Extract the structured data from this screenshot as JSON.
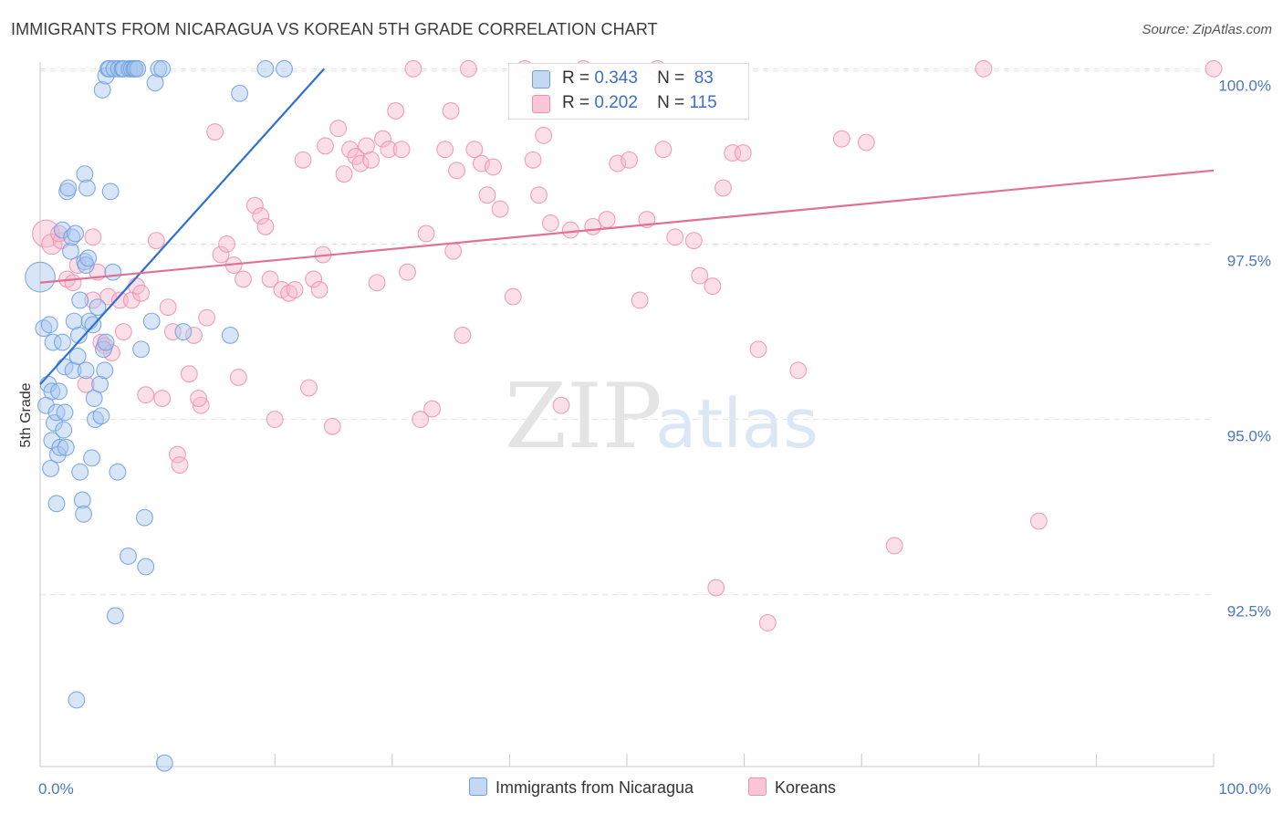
{
  "header": {
    "title": "IMMIGRANTS FROM NICARAGUA VS KOREAN 5TH GRADE CORRELATION CHART",
    "source": "Source: ZipAtlas.com"
  },
  "legend": {
    "r_label": "R =",
    "n_label": "N =",
    "blue": {
      "r": "0.343",
      "n": "83"
    },
    "pink": {
      "r": "0.202",
      "n": "115"
    }
  },
  "bottom_legend": {
    "blue_label": "Immigrants from Nicaragua",
    "pink_label": "Koreans"
  },
  "watermark": {
    "zip": "ZIP",
    "atlas": "atlas"
  },
  "colors": {
    "blue_fill": "#a9c6ee",
    "blue_stroke": "#6b9de0",
    "blue_line": "#2e6fd4",
    "pink_fill": "#f6b8cb",
    "pink_stroke": "#ec8fb0",
    "pink_line": "#e07098",
    "grid": "#e3e3e3",
    "axis_text": "#4a78c2"
  },
  "chart_data": {
    "type": "scatter",
    "title": "IMMIGRANTS FROM NICARAGUA VS KOREAN 5TH GRADE CORRELATION CHART",
    "xlabel": "",
    "ylabel": "5th Grade",
    "xlim": [
      0,
      100
    ],
    "ylim": [
      90.05,
      100.2
    ],
    "x_tick_labels": [
      "0.0%",
      "100.0%"
    ],
    "y_ticks": [
      {
        "value": 92.5,
        "label": "92.5%"
      },
      {
        "value": 95.0,
        "label": "95.0%"
      },
      {
        "value": 97.5,
        "label": "97.5%"
      },
      {
        "value": 100.0,
        "label": "100.0%"
      }
    ],
    "series": [
      {
        "name": "Immigrants from Nicaragua",
        "color": "blue",
        "r": 0.343,
        "n": 83,
        "trendline": {
          "x": [
            0,
            24.2
          ],
          "y": [
            95.5,
            100.0
          ]
        },
        "points": [
          [
            0,
            97.03,
            22
          ],
          [
            0.3,
            96.3,
            12
          ],
          [
            0.5,
            95.2,
            12
          ],
          [
            0.7,
            95.5,
            12
          ],
          [
            0.8,
            96.35,
            12
          ],
          [
            0.9,
            94.3,
            12
          ],
          [
            1.0,
            95.4,
            12
          ],
          [
            1.0,
            94.7,
            12
          ],
          [
            1.1,
            96.1,
            12
          ],
          [
            1.2,
            94.95,
            12
          ],
          [
            1.4,
            93.8,
            12
          ],
          [
            1.4,
            95.1,
            12
          ],
          [
            1.5,
            94.5,
            12
          ],
          [
            1.6,
            95.4,
            12
          ],
          [
            1.7,
            94.6,
            12
          ],
          [
            1.9,
            97.7,
            12
          ],
          [
            1.9,
            96.1,
            12
          ],
          [
            2.0,
            94.85,
            12
          ],
          [
            2.1,
            95.75,
            12
          ],
          [
            2.2,
            94.6,
            12
          ],
          [
            2.1,
            95.1,
            12
          ],
          [
            2.3,
            98.25,
            12
          ],
          [
            2.4,
            98.3,
            12
          ],
          [
            2.6,
            97.4,
            12
          ],
          [
            2.7,
            97.6,
            12
          ],
          [
            2.8,
            95.7,
            12
          ],
          [
            2.9,
            96.4,
            12
          ],
          [
            3.0,
            97.65,
            12
          ],
          [
            3.1,
            91.0,
            12
          ],
          [
            3.2,
            95.9,
            12
          ],
          [
            3.3,
            96.2,
            12
          ],
          [
            3.4,
            94.25,
            12
          ],
          [
            3.4,
            96.7,
            12
          ],
          [
            3.6,
            93.85,
            12
          ],
          [
            3.7,
            93.65,
            12
          ],
          [
            3.8,
            97.25,
            12
          ],
          [
            3.8,
            98.5,
            12
          ],
          [
            3.9,
            97.2,
            12
          ],
          [
            3.9,
            95.7,
            12
          ],
          [
            4.0,
            98.3,
            12
          ],
          [
            4.1,
            97.3,
            12
          ],
          [
            4.2,
            96.4,
            12
          ],
          [
            4.4,
            94.45,
            12
          ],
          [
            4.5,
            96.35,
            12
          ],
          [
            4.6,
            95.3,
            12
          ],
          [
            4.7,
            95.0,
            12
          ],
          [
            4.9,
            96.6,
            12
          ],
          [
            5.1,
            95.5,
            12
          ],
          [
            5.2,
            95.05,
            12
          ],
          [
            5.3,
            99.7,
            12
          ],
          [
            5.4,
            96.0,
            12
          ],
          [
            5.5,
            95.7,
            12
          ],
          [
            5.6,
            96.1,
            12
          ],
          [
            5.6,
            99.9,
            12
          ],
          [
            5.8,
            100.0,
            12
          ],
          [
            5.9,
            100.0,
            12
          ],
          [
            6.0,
            98.25,
            12
          ],
          [
            6.2,
            97.1,
            12
          ],
          [
            6.3,
            100.0,
            12
          ],
          [
            6.6,
            94.25,
            12
          ],
          [
            6.7,
            100.0,
            12
          ],
          [
            7.0,
            100.0,
            12
          ],
          [
            7.1,
            100.0,
            12
          ],
          [
            7.5,
            93.05,
            12
          ],
          [
            7.6,
            100.0,
            12
          ],
          [
            7.8,
            100.0,
            12
          ],
          [
            8.0,
            100.0,
            12
          ],
          [
            8.1,
            100.0,
            12
          ],
          [
            8.3,
            100.0,
            12
          ],
          [
            8.6,
            96.0,
            12
          ],
          [
            8.9,
            93.6,
            12
          ],
          [
            9.0,
            92.9,
            12
          ],
          [
            9.5,
            96.4,
            12
          ],
          [
            9.8,
            99.8,
            12
          ],
          [
            10.1,
            100.0,
            12
          ],
          [
            10.4,
            100.0,
            12
          ],
          [
            10.6,
            90.1,
            12
          ],
          [
            12.2,
            96.25,
            12
          ],
          [
            16.2,
            96.2,
            12
          ],
          [
            17.0,
            99.65,
            12
          ],
          [
            19.2,
            100.0,
            12
          ],
          [
            20.8,
            100.0,
            12
          ],
          [
            6.4,
            92.2,
            12
          ]
        ]
      },
      {
        "name": "Koreans",
        "color": "pink",
        "r": 0.202,
        "n": 115,
        "trendline": {
          "x": [
            0,
            100
          ],
          "y": [
            96.95,
            98.55
          ]
        },
        "points": [
          [
            0.5,
            97.65,
            20
          ],
          [
            1.0,
            97.5,
            15
          ],
          [
            1.8,
            97.55,
            12
          ],
          [
            2.3,
            97.0,
            12
          ],
          [
            2.8,
            96.95,
            12
          ],
          [
            3.2,
            97.2,
            12
          ],
          [
            3.9,
            95.5,
            12
          ],
          [
            4.5,
            96.7,
            12
          ],
          [
            4.9,
            97.1,
            12
          ],
          [
            5.2,
            96.1,
            12
          ],
          [
            5.5,
            96.05,
            12
          ],
          [
            5.8,
            96.75,
            12
          ],
          [
            6.1,
            95.95,
            12
          ],
          [
            6.8,
            96.7,
            12
          ],
          [
            7.1,
            96.25,
            12
          ],
          [
            7.8,
            96.7,
            12
          ],
          [
            8.2,
            96.9,
            12
          ],
          [
            8.6,
            96.8,
            12
          ],
          [
            9.0,
            95.35,
            12
          ],
          [
            9.9,
            97.55,
            12
          ],
          [
            10.4,
            95.3,
            12
          ],
          [
            10.9,
            96.6,
            12
          ],
          [
            11.3,
            96.25,
            12
          ],
          [
            11.7,
            94.5,
            12
          ],
          [
            11.9,
            94.35,
            12
          ],
          [
            12.7,
            95.65,
            12
          ],
          [
            13.1,
            96.2,
            12
          ],
          [
            13.7,
            95.2,
            12
          ],
          [
            14.2,
            96.45,
            12
          ],
          [
            14.9,
            99.1,
            12
          ],
          [
            15.4,
            97.35,
            12
          ],
          [
            15.9,
            97.5,
            12
          ],
          [
            16.5,
            97.2,
            12
          ],
          [
            16.9,
            95.6,
            12
          ],
          [
            17.3,
            97.0,
            12
          ],
          [
            18.3,
            98.05,
            12
          ],
          [
            18.8,
            97.9,
            12
          ],
          [
            19.2,
            97.75,
            12
          ],
          [
            19.6,
            97.0,
            12
          ],
          [
            20.0,
            95.0,
            12
          ],
          [
            20.6,
            96.85,
            12
          ],
          [
            21.2,
            96.8,
            12
          ],
          [
            21.7,
            96.85,
            12
          ],
          [
            22.4,
            98.7,
            12
          ],
          [
            22.9,
            95.45,
            12
          ],
          [
            23.3,
            97.0,
            12
          ],
          [
            23.8,
            96.85,
            12
          ],
          [
            24.3,
            98.9,
            12
          ],
          [
            24.9,
            94.9,
            12
          ],
          [
            25.4,
            99.15,
            12
          ],
          [
            25.9,
            98.5,
            12
          ],
          [
            26.4,
            98.85,
            12
          ],
          [
            26.9,
            98.75,
            12
          ],
          [
            27.3,
            98.65,
            12
          ],
          [
            27.8,
            98.9,
            12
          ],
          [
            28.2,
            98.7,
            12
          ],
          [
            28.7,
            96.95,
            12
          ],
          [
            29.2,
            99.0,
            12
          ],
          [
            29.7,
            98.85,
            12
          ],
          [
            30.3,
            99.4,
            12
          ],
          [
            30.8,
            98.85,
            12
          ],
          [
            31.3,
            97.1,
            12
          ],
          [
            31.8,
            100.0,
            12
          ],
          [
            32.4,
            95.0,
            12
          ],
          [
            32.9,
            97.65,
            12
          ],
          [
            33.4,
            95.15,
            12
          ],
          [
            34.5,
            98.85,
            12
          ],
          [
            35.0,
            99.4,
            12
          ],
          [
            35.5,
            98.55,
            12
          ],
          [
            36.0,
            96.2,
            12
          ],
          [
            36.5,
            100.0,
            12
          ],
          [
            37.0,
            98.85,
            12
          ],
          [
            37.6,
            98.65,
            12
          ],
          [
            38.1,
            98.2,
            12
          ],
          [
            38.6,
            98.6,
            12
          ],
          [
            39.2,
            98.0,
            12
          ],
          [
            40.3,
            96.75,
            12
          ],
          [
            41.3,
            100.0,
            12
          ],
          [
            42.0,
            98.7,
            12
          ],
          [
            42.5,
            98.2,
            12
          ],
          [
            42.9,
            99.05,
            12
          ],
          [
            43.5,
            97.8,
            12
          ],
          [
            45.2,
            97.7,
            12
          ],
          [
            46.3,
            100.0,
            12
          ],
          [
            47.1,
            97.75,
            12
          ],
          [
            48.3,
            97.85,
            12
          ],
          [
            49.2,
            98.65,
            12
          ],
          [
            50.2,
            98.7,
            12
          ],
          [
            51.1,
            96.7,
            12
          ],
          [
            51.7,
            97.85,
            12
          ],
          [
            53.1,
            98.85,
            12
          ],
          [
            54.1,
            97.6,
            12
          ],
          [
            56.2,
            97.05,
            12
          ],
          [
            57.3,
            96.9,
            12
          ],
          [
            58.2,
            98.3,
            12
          ],
          [
            59.0,
            98.8,
            12
          ],
          [
            59.9,
            98.8,
            12
          ],
          [
            61.2,
            96.0,
            12
          ],
          [
            62.0,
            92.1,
            12
          ],
          [
            64.6,
            95.7,
            12
          ],
          [
            57.6,
            92.6,
            12
          ],
          [
            68.3,
            99.0,
            12
          ],
          [
            70.4,
            98.95,
            12
          ],
          [
            72.8,
            93.2,
            12
          ],
          [
            80.4,
            100.0,
            12
          ],
          [
            85.1,
            93.55,
            12
          ],
          [
            100.0,
            100.0,
            12
          ],
          [
            44.4,
            95.2,
            12
          ],
          [
            52.6,
            100.0,
            12
          ],
          [
            35.2,
            97.4,
            12
          ],
          [
            24.1,
            97.35,
            12
          ],
          [
            13.5,
            95.3,
            12
          ],
          [
            4.5,
            97.6,
            12
          ],
          [
            1.6,
            97.65,
            12
          ],
          [
            55.7,
            97.55,
            12
          ]
        ]
      }
    ]
  }
}
